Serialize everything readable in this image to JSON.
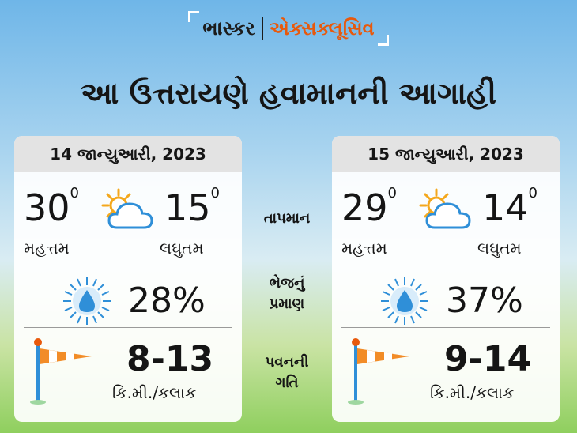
{
  "brand": {
    "name": "ભાસ્કર",
    "tag": "એક્સક્લૂસિવ"
  },
  "headline": "આ ઉત્તરાયણે હવામાનની આગાહી",
  "labels": {
    "temperature": "તાપમાન",
    "humidity_line1": "ભેજનું",
    "humidity_line2": "પ્રમાણ",
    "wind_line1": "પવનની",
    "wind_line2": "ગતિ"
  },
  "days": [
    {
      "date": "14 જાન્યુઆરી, 2023",
      "max_temp": "30",
      "max_label": "મહત્તમ",
      "min_temp": "15",
      "min_label": "લઘુતમ",
      "degree": "0",
      "humidity": "28%",
      "wind": "8-13",
      "wind_unit": "કિ.મી./કલાક"
    },
    {
      "date": "15 જાન્યુઆરી, 2023",
      "max_temp": "29",
      "max_label": "મહત્તમ",
      "min_temp": "14",
      "min_label": "લઘુતમ",
      "degree": "0",
      "humidity": "37%",
      "wind": "9-14",
      "wind_unit": "કિ.મી./કલાક"
    }
  ],
  "colors": {
    "accent": "#e8590c",
    "drop": "#2f8fd8",
    "sun": "#f4a81d"
  },
  "icons": [
    "partly-cloudy-icon",
    "water-drop-icon",
    "windsock-icon"
  ]
}
